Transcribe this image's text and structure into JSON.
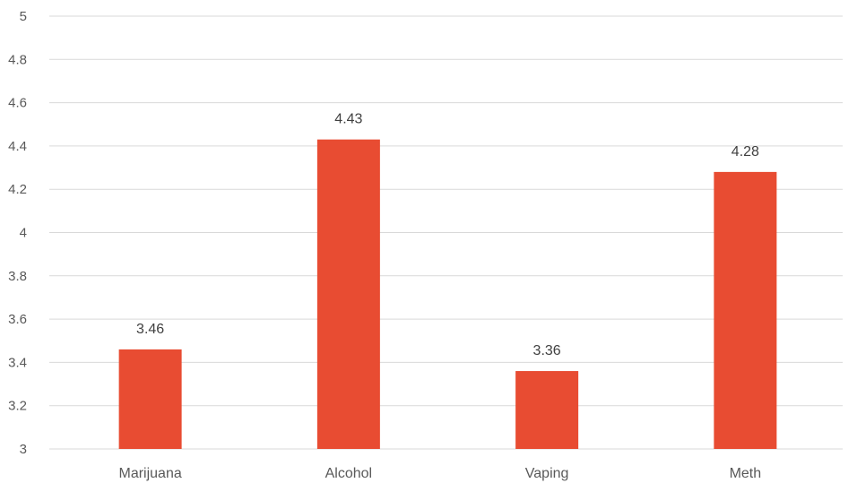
{
  "chart_data": {
    "type": "bar",
    "categories": [
      "Marijuana",
      "Alcohol",
      "Vaping",
      "Meth"
    ],
    "values": [
      3.46,
      4.43,
      3.36,
      4.28
    ],
    "data_labels": [
      "3.46",
      "4.43",
      "3.36",
      "4.28"
    ],
    "title": "",
    "xlabel": "",
    "ylabel": "",
    "ylim": [
      3,
      5
    ],
    "yticks": [
      "3",
      "3.2",
      "3.4",
      "3.6",
      "3.8",
      "4",
      "4.2",
      "4.4",
      "4.6",
      "4.8",
      "5"
    ],
    "grid": true,
    "legend": "none",
    "bar_color": "#e84c32",
    "grid_color": "#d9d9d9",
    "text_color": "#595959"
  }
}
